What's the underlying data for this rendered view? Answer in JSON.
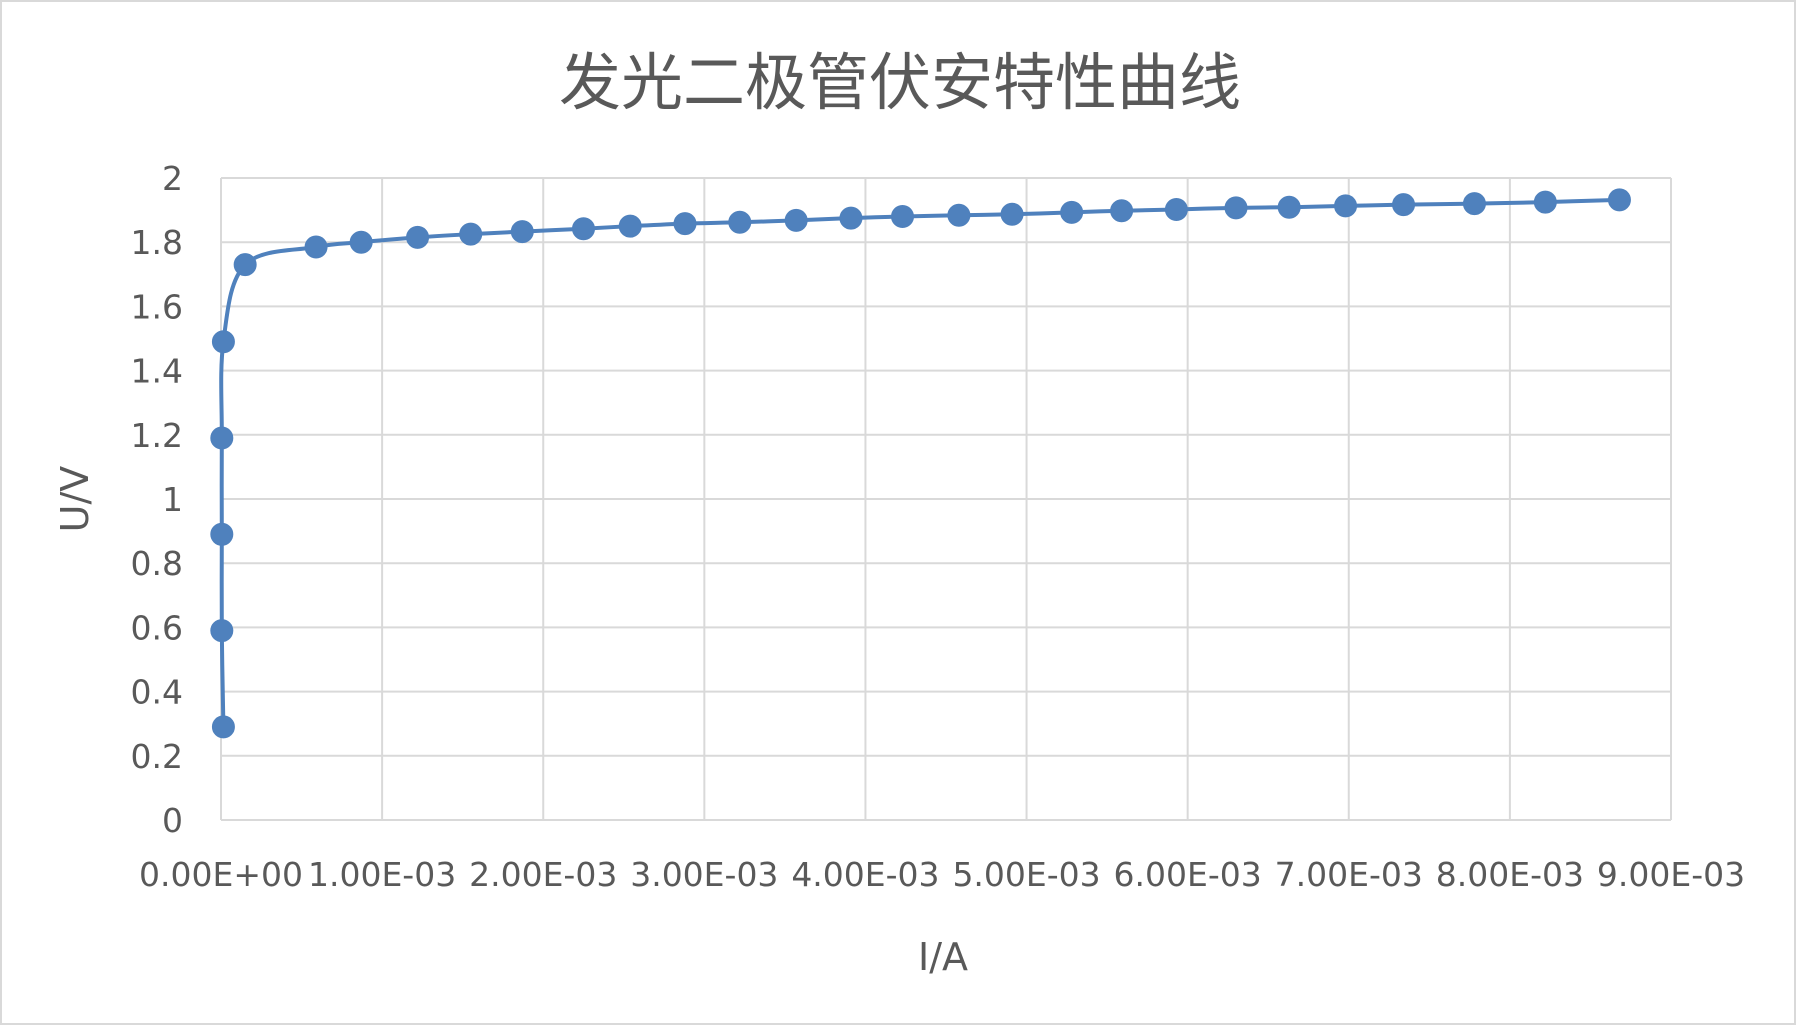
{
  "chart_data": {
    "type": "scatter",
    "title": "发光二极管伏安特性曲线",
    "xlabel": "I/A",
    "ylabel": "U/V",
    "xlim": [
      0,
      0.009
    ],
    "ylim": [
      0,
      2
    ],
    "x_ticks": [
      "0.00E+00",
      "1.00E-03",
      "2.00E-03",
      "3.00E-03",
      "4.00E-03",
      "5.00E-03",
      "6.00E-03",
      "7.00E-03",
      "8.00E-03",
      "9.00E-03"
    ],
    "y_ticks": [
      "0",
      "0.2",
      "0.4",
      "0.6",
      "0.8",
      "1",
      "1.2",
      "1.4",
      "1.6",
      "1.8",
      "2"
    ],
    "grid": true,
    "smooth": true,
    "series": [
      {
        "color": "#4f81bd",
        "x": [
          1.5e-05,
          5e-06,
          5e-06,
          5e-06,
          1.5e-05,
          0.00015,
          0.00059,
          0.00087,
          0.00122,
          0.00155,
          0.00187,
          0.00225,
          0.00254,
          0.00288,
          0.00322,
          0.00357,
          0.00391,
          0.00423,
          0.00458,
          0.00491,
          0.00528,
          0.00559,
          0.00593,
          0.0063,
          0.00663,
          0.00698,
          0.00734,
          0.00778,
          0.00822,
          0.00868
        ],
        "y": [
          0.29,
          0.59,
          0.89,
          1.19,
          1.49,
          1.73,
          1.785,
          1.8,
          1.815,
          1.825,
          1.833,
          1.842,
          1.85,
          1.858,
          1.862,
          1.868,
          1.875,
          1.88,
          1.884,
          1.887,
          1.893,
          1.898,
          1.902,
          1.907,
          1.909,
          1.913,
          1.917,
          1.92,
          1.925,
          1.932
        ]
      }
    ]
  }
}
